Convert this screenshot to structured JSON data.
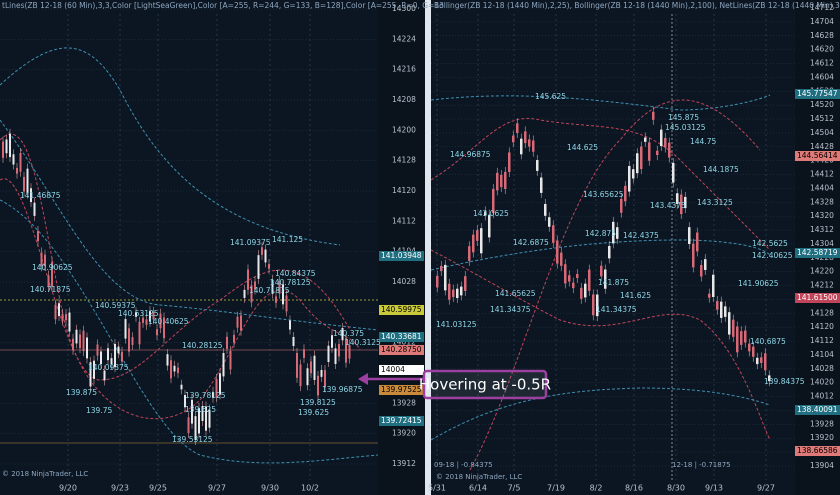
{
  "left_panel": {
    "header": "tLines(ZB 12-18 (60 Min),3,3,Color [LightSeaGreen],Color [A=255, R=244, G=133, B=128],Color [A=255, R=0, G=13",
    "axis_labels": [
      "14300",
      "14224",
      "14216",
      "14208",
      "14200",
      "14128",
      "14120",
      "14112",
      "14104",
      "14028",
      "14020",
      "14012",
      "14004",
      "13928",
      "13920",
      "13912"
    ],
    "price_markers": [
      "141.03948",
      "140.59975",
      "140.33681",
      "140.28750",
      "14004",
      "139.97525",
      "139.72415"
    ],
    "dates": [
      "9/20",
      "9/23",
      "9/25",
      "9/27",
      "9/30",
      "10/2"
    ],
    "annotations": [
      "141.46875",
      "140.90625",
      "140.71875",
      "140.59375",
      "140.53125",
      "140.40625",
      "140.09375",
      "139.875",
      "139.75",
      "139.53125",
      "141.09375",
      "141.125",
      "140.84375",
      "140.78125",
      "140.71875",
      "140.3125",
      "140.375",
      "139.96875",
      "139.8125",
      "139.625",
      "140.28125",
      "139.78125",
      "139.625"
    ],
    "copyright": "© 2018 NinjaTrader, LLC"
  },
  "right_panel": {
    "header": "Bollinger(ZB 12-18 (1440 Min),2,25), Bollinger(ZB 12-18 (1440 Min),2,100), NetLines(ZB 12-18 (1440 Min),3,5,Colo",
    "axis_labels": [
      "14712",
      "14704",
      "14628",
      "14620",
      "14612",
      "14604",
      "14528",
      "14520",
      "14512",
      "14504",
      "14428",
      "14420",
      "14412",
      "14404",
      "14328",
      "14320",
      "14312",
      "14304",
      "14228",
      "14220",
      "14212",
      "14204",
      "14128",
      "14120",
      "14112",
      "14104",
      "14028",
      "14020",
      "14012",
      "14004",
      "13928",
      "13920",
      "13912",
      "13904"
    ],
    "price_markers": [
      "145.77547",
      "144.56414",
      "142.58719",
      "141.61500",
      "138.40091",
      "138.66586"
    ],
    "dates": [
      "5/31",
      "6/14",
      "7/5",
      "7/19",
      "8/2",
      "8/16",
      "8/30",
      "9/13",
      "9/27"
    ],
    "annotations": [
      "145.625",
      "145.03125",
      "144.96875",
      "144.625",
      "144.75",
      "144.1875",
      "143.65625",
      "143.4375",
      "143.3125",
      "142.875",
      "142.6875",
      "142.4375",
      "142.5625",
      "142.40625",
      "141.90625",
      "141.875",
      "141.625",
      "141.34375",
      "141.34375",
      "141.65625",
      "141.03125",
      "140.6875",
      "139.84375",
      "143.0625",
      "145.875"
    ],
    "contract_labels": [
      "09-18 | -0.84375",
      "12-18 | -0.71875"
    ],
    "copyright": "© 2018 NinjaTrader, LLC"
  },
  "callout": "Hovering at -0.5R"
}
